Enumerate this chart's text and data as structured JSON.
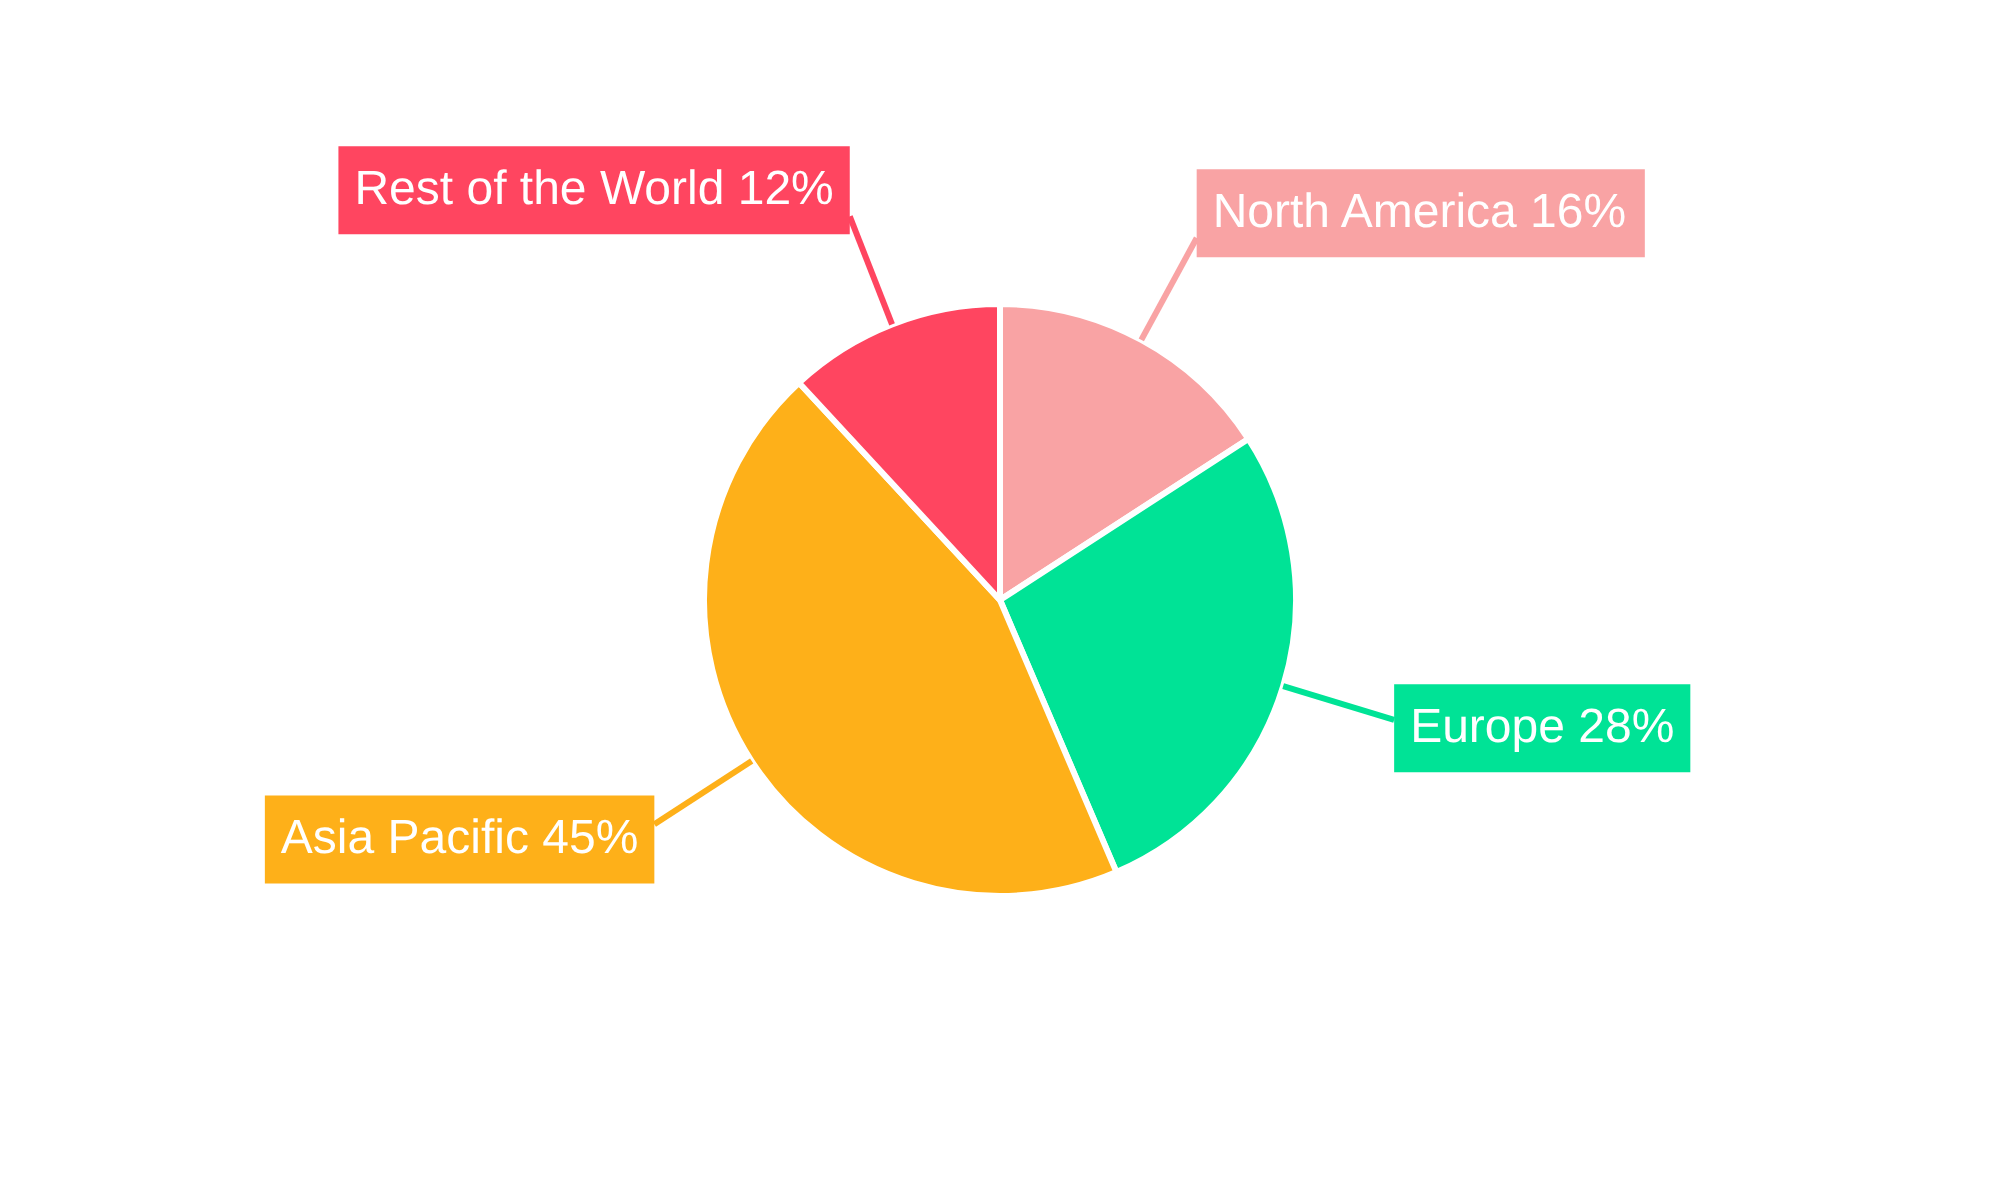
{
  "chart_data": {
    "type": "pie",
    "categories": [
      "North America",
      "Europe",
      "Asia Pacific",
      "Rest of the World"
    ],
    "values": [
      16,
      28,
      45,
      12
    ],
    "value_labels": [
      "16%",
      "28%",
      "45%",
      "12%"
    ],
    "colors": [
      "#f9a3a4",
      "#00e396",
      "#feb019",
      "#ff4560"
    ]
  }
}
